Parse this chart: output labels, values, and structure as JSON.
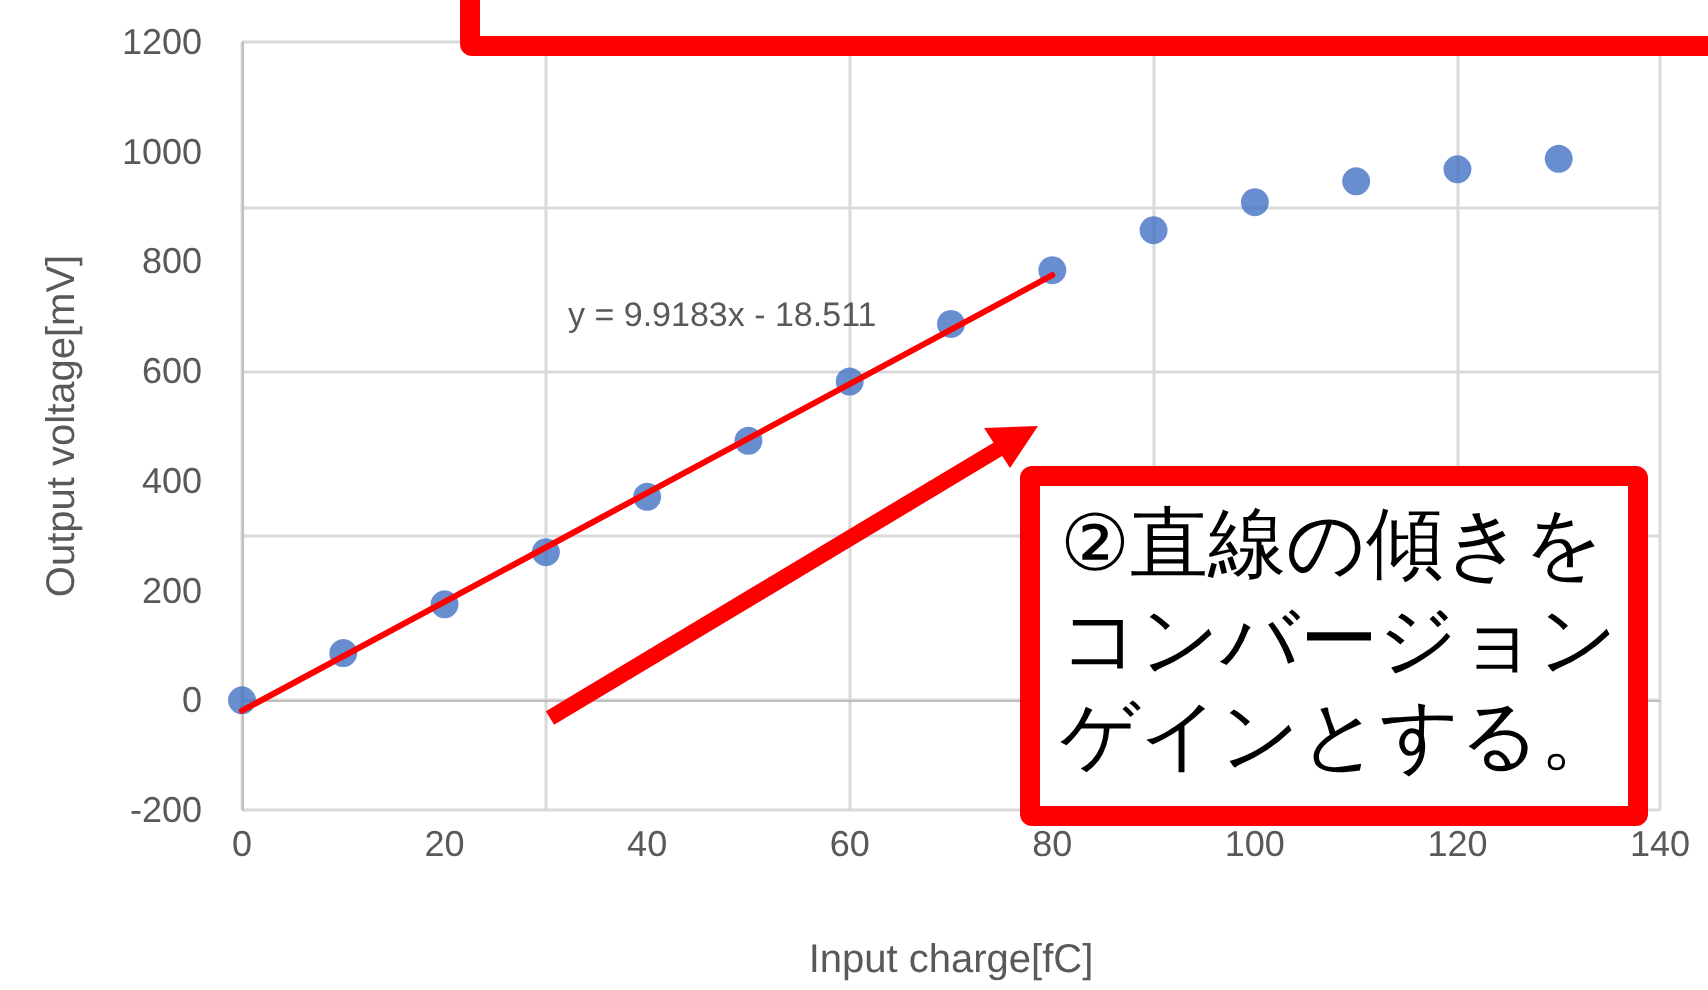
{
  "chart_data": {
    "type": "scatter",
    "xlabel": "Input charge[fC]",
    "ylabel": "Output voltage[mV]",
    "x": [
      0,
      10,
      20,
      30,
      40,
      50,
      60,
      70,
      80,
      90,
      100,
      110,
      120,
      130
    ],
    "series": [
      {
        "color": "#4472c4",
        "values": [
          0,
          86,
          175,
          270,
          371,
          473,
          581,
          686,
          784,
          857,
          908,
          946,
          968,
          987
        ]
      },
      {
        "type": "line",
        "color": "#ff0000",
        "x": [
          0,
          80
        ],
        "values": [
          -19,
          775
        ],
        "marker": "none"
      }
    ],
    "xlim": [
      0,
      140
    ],
    "xticks": [
      0,
      20,
      40,
      60,
      80,
      100,
      120,
      140
    ],
    "ylim": [
      -200,
      1200
    ],
    "yticks": [
      -200,
      0,
      200,
      400,
      600,
      800,
      {
        "value": 1000,
        "label": "1000"
      },
      {
        "value": 1200,
        "label": "1200"
      }
    ],
    "grid": true,
    "marker": "circle",
    "annotations": [
      "y = 9.9183x - 18.511",
      "②直線の傾きをコンバージョンゲインとする。"
    ]
  }
}
